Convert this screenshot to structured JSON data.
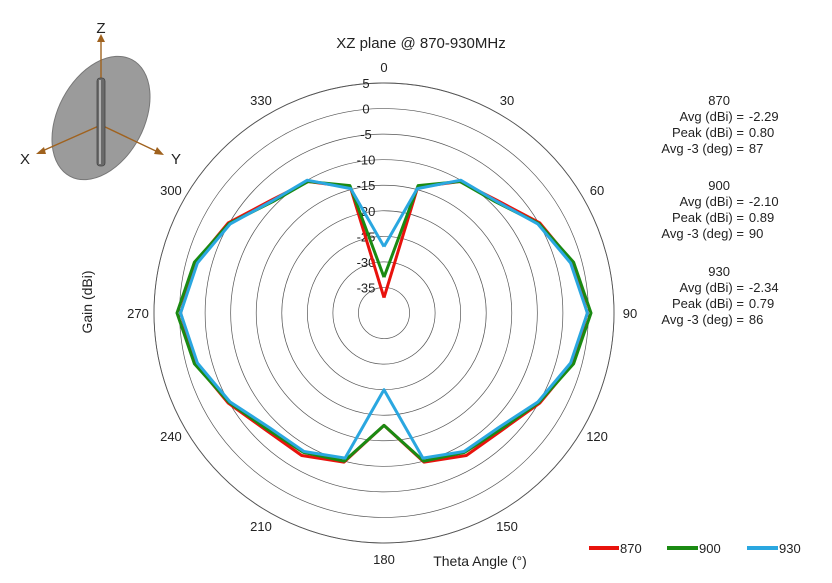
{
  "chart_data": {
    "type": "polar-line",
    "title": "XZ plane @ 870-930MHz",
    "radial_axis_label": "Gain  (dBi)",
    "angle_axis_label": "Theta  Angle (°)",
    "radial_range": [
      -40,
      5
    ],
    "radial_ticks": [
      5,
      0,
      -5,
      -10,
      -15,
      -20,
      -25,
      -30,
      -35
    ],
    "angle_ticks": [
      0,
      30,
      60,
      90,
      120,
      150,
      180,
      210,
      240,
      270,
      300,
      330
    ],
    "grid": true,
    "legend_position": "bottom-right",
    "theta": [
      0,
      15,
      30,
      45,
      60,
      75,
      90,
      105,
      120,
      135,
      150,
      165,
      180,
      195,
      210,
      225,
      240,
      255,
      270,
      285,
      300,
      315,
      330,
      345
    ],
    "series": [
      {
        "name": "870",
        "color": "#e8120c",
        "values": [
          -37,
          -14.5,
          -10.3,
          -8.8,
          -4.8,
          -1.8,
          -0.2,
          -1.8,
          -4.8,
          -7.5,
          -7.8,
          -9.8,
          -18,
          -9.8,
          -7.8,
          -7.5,
          -4.8,
          -1.8,
          -0.2,
          -1.8,
          -4.8,
          -8.8,
          -10.3,
          -14.5
        ]
      },
      {
        "name": "900",
        "color": "#1a8a12",
        "values": [
          -33,
          -14.2,
          -10.3,
          -9.2,
          -5.0,
          -1.6,
          0.5,
          -1.6,
          -5.0,
          -7.8,
          -8.5,
          -10.0,
          -18,
          -10.0,
          -8.5,
          -7.8,
          -5.0,
          -1.6,
          0.5,
          -1.6,
          -5.0,
          -9.2,
          -10.3,
          -14.2
        ]
      },
      {
        "name": "930",
        "color": "#2aa7e0",
        "values": [
          -27,
          -14.8,
          -10.0,
          -9.0,
          -5.2,
          -2.2,
          -0.2,
          -2.2,
          -5.2,
          -8.3,
          -8.7,
          -10.6,
          -25,
          -10.6,
          -8.7,
          -8.3,
          -5.2,
          -2.2,
          -0.2,
          -2.2,
          -5.2,
          -9.0,
          -10.0,
          -14.8
        ]
      }
    ]
  },
  "stats": [
    {
      "name": "870",
      "avg_label": "Avg (dBi) =",
      "avg": "-2.29",
      "peak_label": "Peak (dBi) =",
      "peak": "0.80",
      "deg_label": "Avg -3 (deg) =",
      "deg": "87"
    },
    {
      "name": "900",
      "avg_label": "Avg (dBi) =",
      "avg": "-2.10",
      "peak_label": "Peak (dBi) =",
      "peak": "0.89",
      "deg_label": "Avg -3 (deg) =",
      "deg": "90"
    },
    {
      "name": "930",
      "avg_label": "Avg (dBi) =",
      "avg": "-2.34",
      "peak_label": "Peak (dBi) =",
      "peak": "0.79",
      "deg_label": "Avg -3 (deg) =",
      "deg": "86"
    }
  ],
  "orientation": {
    "x": "X",
    "y": "Y",
    "z": "Z"
  }
}
